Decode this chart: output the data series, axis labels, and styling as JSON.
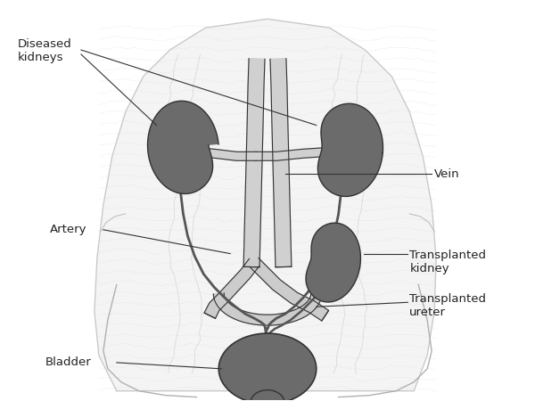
{
  "bg_color": "#ffffff",
  "body_fill": "#f2f2f2",
  "body_line": "#cccccc",
  "organ_dark": "#6b6b6b",
  "organ_mid": "#888888",
  "vessel_fill": "#cccccc",
  "vessel_line": "#333333",
  "text_color": "#222222",
  "sketch_color": "#d4d4d4",
  "labels": {
    "diseased_kidneys": "Diseased\nkidneys",
    "artery": "Artery",
    "vein": "Vein",
    "transplanted_kidney": "Transplanted\nkidney",
    "transplanted_ureter": "Transplanted\nureter",
    "bladder": "Bladder"
  }
}
